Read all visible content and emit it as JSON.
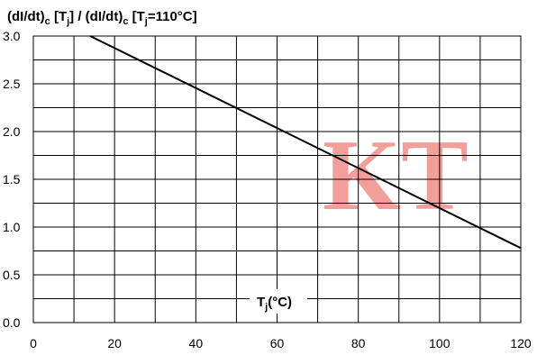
{
  "chart_data": {
    "type": "line",
    "title": "(dI/dt)c [Tj] / (dI/dt)c [Tj=110°C]",
    "title_parts": {
      "a": "(dI/dt)",
      "a_sub": "c",
      "b": " [T",
      "b_sub": "j",
      "c": "] / (dI/dt)",
      "c_sub": "c",
      "d": " [T",
      "d_sub": "j",
      "e": "=110°C]"
    },
    "xlabel": "Tj(°C)",
    "xlabel_parts": {
      "main": "T",
      "sub": "j",
      "unit": "(°C)"
    },
    "ylabel": "",
    "xlim": [
      0,
      120
    ],
    "ylim": [
      0.0,
      3.0
    ],
    "x_ticks": [
      0,
      20,
      40,
      60,
      80,
      100,
      120
    ],
    "y_ticks": [
      "0.0",
      "0.5",
      "1.0",
      "1.5",
      "2.0",
      "2.5",
      "3.0"
    ],
    "x_grid_step": 10,
    "y_grid_step": 0.25,
    "grid": true,
    "legend": "none",
    "series": [
      {
        "points": [
          {
            "x": 14,
            "y": 3.0
          },
          {
            "x": 120,
            "y": 0.78
          }
        ]
      }
    ],
    "line_color": "#000000",
    "grid_color": "#000000"
  },
  "watermark": {
    "text": "KT",
    "color": "#f08078"
  }
}
